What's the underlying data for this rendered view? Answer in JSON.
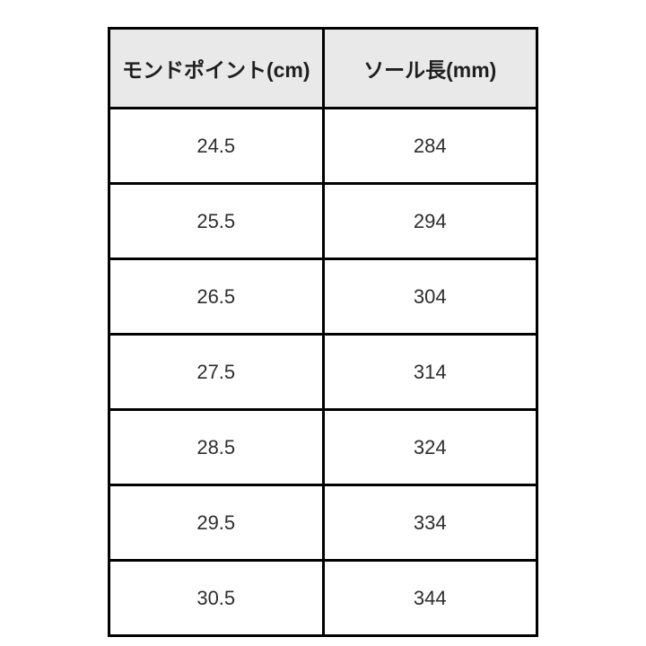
{
  "chart_data": {
    "type": "table",
    "title": "",
    "columns": [
      "モンドポイント(cm)",
      "ソール長(mm)"
    ],
    "rows": [
      [
        "24.5",
        "284"
      ],
      [
        "25.5",
        "294"
      ],
      [
        "26.5",
        "304"
      ],
      [
        "27.5",
        "314"
      ],
      [
        "28.5",
        "324"
      ],
      [
        "29.5",
        "334"
      ],
      [
        "30.5",
        "344"
      ]
    ]
  },
  "colors": {
    "header_bg": "#e9e9e9",
    "border": "#000000",
    "header_text": "#1f1f1f",
    "body_text": "#2d2d2d",
    "page_bg": "#ffffff"
  }
}
